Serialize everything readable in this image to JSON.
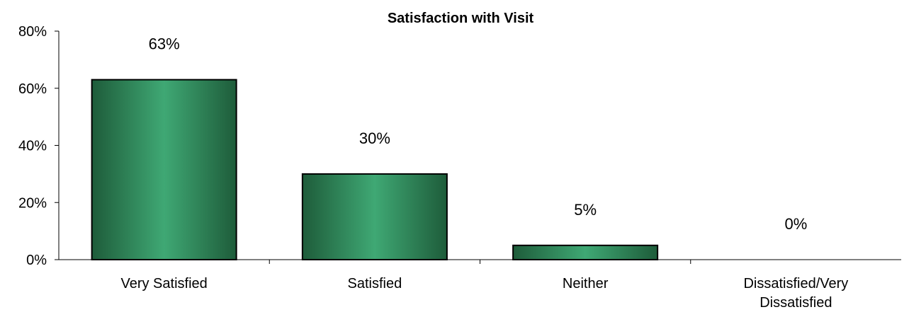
{
  "chart_data": {
    "type": "bar",
    "title": "Satisfaction with Visit",
    "categories": [
      "Very Satisfied",
      "Satisfied",
      "Neither",
      "Dissatisfied/Very Dissatisfied"
    ],
    "category_lines": [
      [
        "Very Satisfied"
      ],
      [
        "Satisfied"
      ],
      [
        "Neither"
      ],
      [
        "Dissatisfied/Very",
        "Dissatisfied"
      ]
    ],
    "values": [
      63,
      30,
      5,
      0
    ],
    "data_labels": [
      "63%",
      "30%",
      "5%",
      "0%"
    ],
    "y_ticks": [
      0,
      20,
      40,
      60,
      80
    ],
    "y_tick_labels": [
      "0%",
      "20%",
      "40%",
      "60%",
      "80%"
    ],
    "ylim": [
      0,
      80
    ],
    "xlabel": "",
    "ylabel": "",
    "grid": false,
    "legend": "none",
    "colors": {
      "bar_dark": "#1e5c3a",
      "bar_light": "#3fa874",
      "bar_border": "#000000",
      "axis": "#000000"
    }
  }
}
